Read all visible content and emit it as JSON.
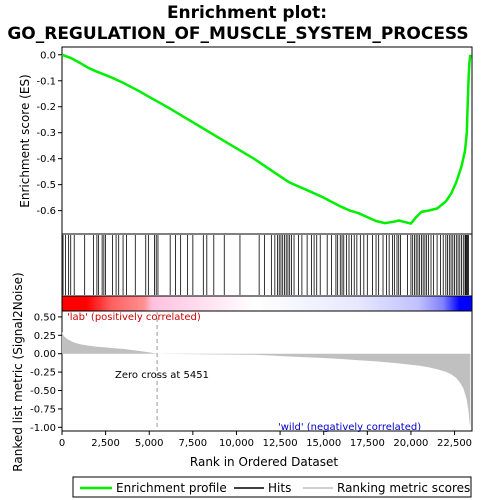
{
  "chart_data": {
    "type": "line",
    "title_line1": "Enrichment plot:",
    "title_line2": "GO_REGULATION_OF_MUSCLE_SYSTEM_PROCESS",
    "xlabel": "Rank in Ordered Dataset",
    "ylabel_top": "Enrichment score (ES)",
    "ylabel_bottom": "Ranked list metric (Signal2Noise)",
    "xlim": [
      0,
      23500
    ],
    "x_ticks": [
      0,
      2500,
      5000,
      7500,
      10000,
      12500,
      15000,
      17500,
      20000,
      22500
    ],
    "x_tick_labels": [
      "0",
      "2,500",
      "5,000",
      "7,500",
      "10,000",
      "12,500",
      "15,000",
      "17,500",
      "20,000",
      "22,500"
    ],
    "es_ylim": [
      -0.69,
      0.03
    ],
    "es_ticks": [
      0.0,
      -0.1,
      -0.2,
      -0.3,
      -0.4,
      -0.5,
      -0.6
    ],
    "es_tick_labels": [
      "0.0",
      "-0.1",
      "-0.2",
      "-0.3",
      "-0.4",
      "-0.5",
      "-0.6"
    ],
    "metric_ylim": [
      -1.05,
      0.58
    ],
    "metric_ticks": [
      0.5,
      0.25,
      0.0,
      -0.25,
      -0.5,
      -0.75,
      -1.0
    ],
    "metric_tick_labels": [
      "0.50",
      "0.25",
      "0.00",
      "-0.25",
      "-0.50",
      "-0.75",
      "-1.00"
    ],
    "enrichment_profile": {
      "x": [
        0,
        500,
        1000,
        1500,
        2000,
        2500,
        3000,
        3500,
        4000,
        4500,
        5000,
        6000,
        7000,
        8000,
        9000,
        10000,
        11000,
        12000,
        12500,
        13000,
        13500,
        14000,
        14500,
        15000,
        15500,
        16000,
        16500,
        17000,
        17500,
        18000,
        18500,
        19000,
        19300,
        19600,
        20000,
        20300,
        20600,
        21000,
        21500,
        22000,
        22300,
        22600,
        22900,
        23100,
        23200,
        23250,
        23300,
        23350,
        23400
      ],
      "y": [
        0.0,
        -0.012,
        -0.03,
        -0.05,
        -0.065,
        -0.078,
        -0.092,
        -0.108,
        -0.125,
        -0.143,
        -0.162,
        -0.2,
        -0.24,
        -0.28,
        -0.32,
        -0.36,
        -0.4,
        -0.445,
        -0.468,
        -0.49,
        -0.505,
        -0.52,
        -0.535,
        -0.55,
        -0.568,
        -0.585,
        -0.6,
        -0.61,
        -0.625,
        -0.64,
        -0.648,
        -0.643,
        -0.638,
        -0.643,
        -0.65,
        -0.625,
        -0.605,
        -0.6,
        -0.592,
        -0.565,
        -0.535,
        -0.49,
        -0.43,
        -0.37,
        -0.3,
        -0.2,
        -0.1,
        -0.03,
        0.0
      ]
    },
    "hits": [
      60,
      200,
      380,
      500,
      700,
      1300,
      1800,
      2000,
      2100,
      2300,
      2400,
      2500,
      2900,
      3100,
      3250,
      3500,
      3700,
      4200,
      4800,
      4950,
      5300,
      5400,
      5500,
      6200,
      6500,
      6800,
      7200,
      7500,
      8100,
      8300,
      8700,
      9300,
      10200,
      11300,
      11600,
      12000,
      12200,
      12350,
      12450,
      12550,
      12650,
      12750,
      12850,
      12950,
      13050,
      13150,
      13300,
      13550,
      13750,
      14050,
      14300,
      14450,
      14600,
      14800,
      15200,
      15450,
      15700,
      15800,
      15950,
      16050,
      16150,
      16300,
      16450,
      16600,
      16750,
      16900,
      17100,
      17300,
      17500,
      17800,
      18000,
      18150,
      18400,
      18600,
      18750,
      18950,
      19050,
      19200,
      19300,
      19400,
      19800,
      20000,
      20100,
      20200,
      20300,
      20400,
      20500,
      20600,
      20700,
      20800,
      20900,
      21000,
      21150,
      21300,
      21500,
      21700,
      21850,
      22000,
      22100,
      22200,
      22300,
      22400,
      22500,
      22600,
      22700,
      22800,
      22900,
      23000,
      23100,
      23150,
      23200,
      23250,
      23300
    ],
    "ranked_metric": {
      "x": [
        0,
        100,
        300,
        600,
        1000,
        1500,
        2000,
        2500,
        3000,
        3500,
        4000,
        4500,
        5000,
        5451,
        6000,
        8000,
        10000,
        11000,
        12000,
        13000,
        14000,
        15000,
        16000,
        17000,
        18000,
        19000,
        20000,
        20500,
        21000,
        21500,
        22000,
        22300,
        22600,
        22800,
        23000,
        23100,
        23200,
        23300,
        23350,
        23400
      ],
      "y": [
        0.3,
        0.24,
        0.2,
        0.16,
        0.13,
        0.11,
        0.095,
        0.085,
        0.075,
        0.065,
        0.05,
        0.035,
        0.018,
        0.0,
        -0.003,
        -0.008,
        -0.012,
        -0.015,
        -0.025,
        -0.038,
        -0.048,
        -0.058,
        -0.072,
        -0.088,
        -0.105,
        -0.125,
        -0.15,
        -0.165,
        -0.185,
        -0.21,
        -0.245,
        -0.28,
        -0.33,
        -0.39,
        -0.47,
        -0.54,
        -0.63,
        -0.78,
        -0.92,
        -1.0
      ]
    },
    "zero_cross_x": 5451,
    "zero_cross_label": "Zero cross at 5451",
    "pos_label": "'lab' (positively correlated)",
    "neg_label": "'wild' (negatively correlated)",
    "legend": [
      "Enrichment profile",
      "Hits",
      "Ranking metric scores"
    ],
    "colors": {
      "profile": "#00ee00",
      "hits": "#000000",
      "metric_fill": "#c0c0c0",
      "pos_text": "#cc0000",
      "neg_text": "#0000cc",
      "bar_red": "#ff0000",
      "bar_pink": "#ffc0e0",
      "bar_blue": "#0000ff",
      "bar_lavender": "#c0c0ff"
    }
  }
}
